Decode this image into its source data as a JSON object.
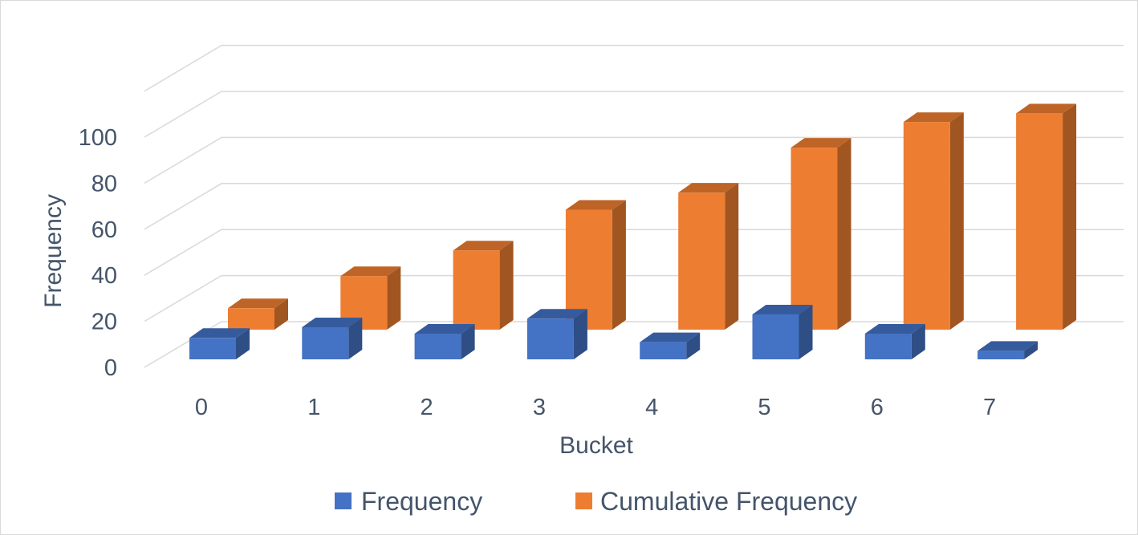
{
  "chart_data": {
    "type": "bar",
    "variant": "3d-column",
    "title": "",
    "xlabel": "Bucket",
    "ylabel": "Frequency",
    "categories": [
      "0",
      "1",
      "2",
      "3",
      "4",
      "5",
      "6",
      "7"
    ],
    "series": [
      {
        "name": "Frequency",
        "color": "#4472c4",
        "values": [
          10,
          15,
          12,
          19,
          8,
          21,
          12,
          4
        ]
      },
      {
        "name": "Cumulative Frequency",
        "color": "#ed7d31",
        "values": [
          10,
          25,
          37,
          56,
          64,
          85,
          97,
          101
        ]
      }
    ],
    "ylim": [
      0,
      100
    ],
    "yticks": [
      "0",
      "20",
      "40",
      "60",
      "80",
      "100"
    ],
    "grid": true,
    "legend": "bottom"
  }
}
